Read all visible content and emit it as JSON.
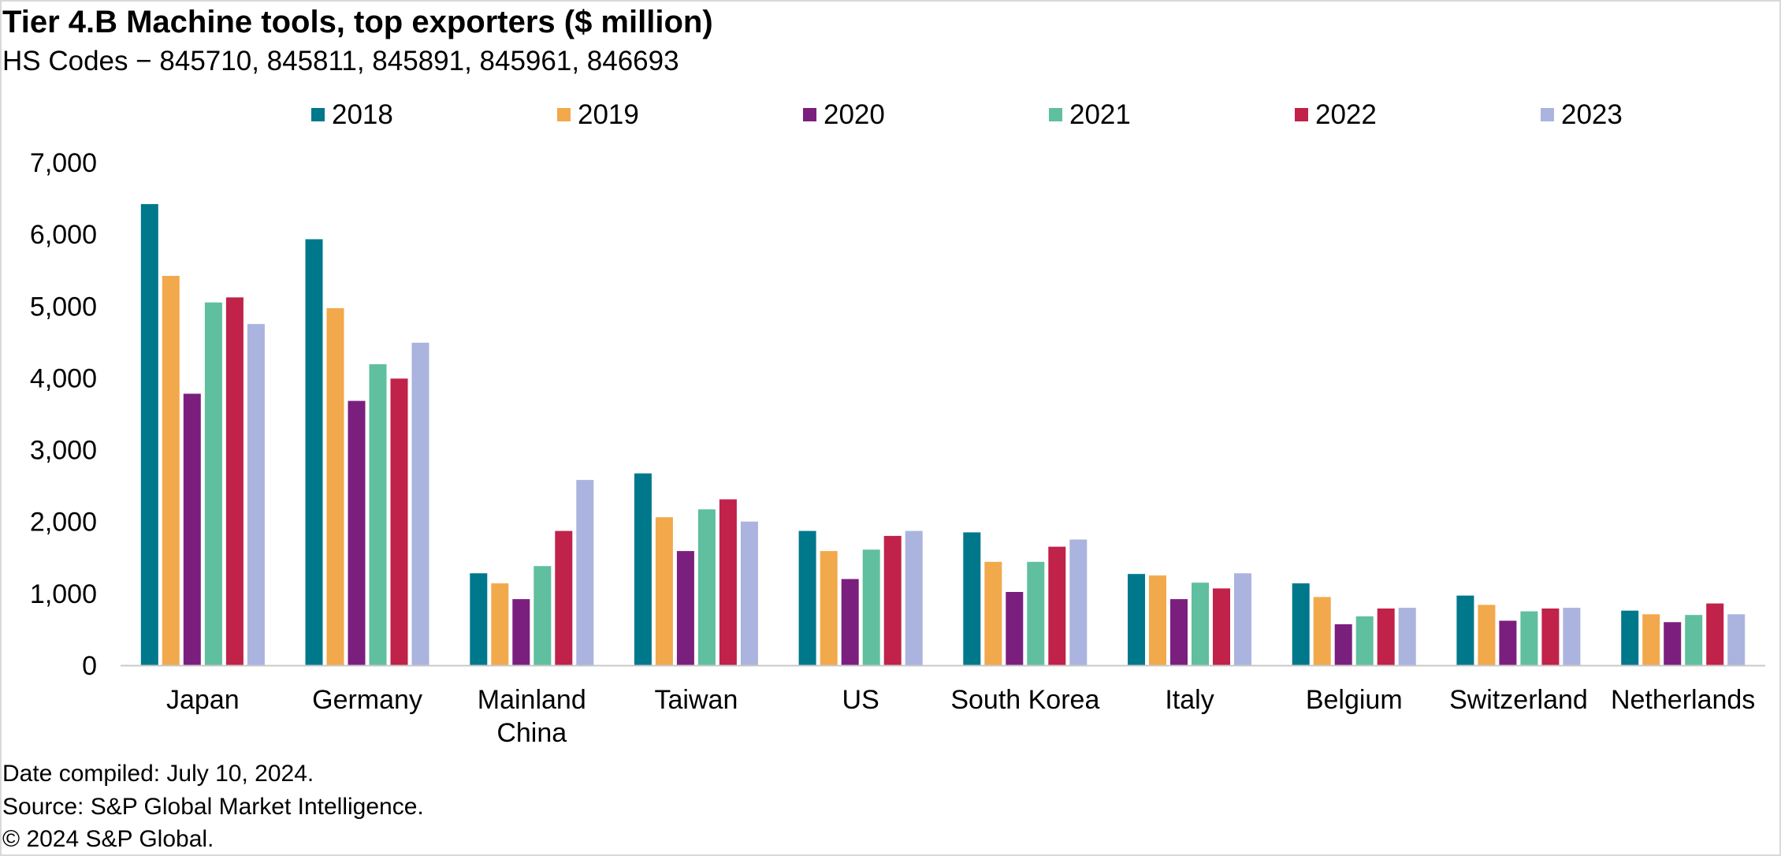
{
  "header": {
    "title": "Tier 4.B Machine tools, top exporters ($ million)",
    "subtitle": "HS Codes − 845710, 845811, 845891, 845961, 846693"
  },
  "footer": {
    "date": "Date compiled: July 10, 2024.",
    "source": "Source: S&P Global Market Intelligence.",
    "copyright": "© 2024 S&P Global."
  },
  "chart_data": {
    "type": "bar",
    "title": "Tier 4.B Machine tools, top exporters ($ million)",
    "xlabel": "",
    "ylabel": "",
    "ylim": [
      0,
      7000
    ],
    "yticks": [
      0,
      1000,
      2000,
      3000,
      4000,
      5000,
      6000,
      7000
    ],
    "ytick_labels": [
      "0",
      "1,000",
      "2,000",
      "3,000",
      "4,000",
      "5,000",
      "6,000",
      "7,000"
    ],
    "grid": false,
    "legend_position": "top",
    "categories": [
      "Japan",
      "Germany",
      "Mainland China",
      "Taiwan",
      "US",
      "South Korea",
      "Italy",
      "Belgium",
      "Switzerland",
      "Netherlands"
    ],
    "category_lines": [
      [
        "Japan"
      ],
      [
        "Germany"
      ],
      [
        "Mainland",
        "China"
      ],
      [
        "Taiwan"
      ],
      [
        "US"
      ],
      [
        "South Korea"
      ],
      [
        "Italy"
      ],
      [
        "Belgium"
      ],
      [
        "Switzerland"
      ],
      [
        "Netherlands"
      ]
    ],
    "series": [
      {
        "name": "2018",
        "color": "#00788c",
        "values": [
          6420,
          5930,
          1280,
          2670,
          1870,
          1850,
          1270,
          1140,
          970,
          760
        ]
      },
      {
        "name": "2019",
        "color": "#f2a94b",
        "values": [
          5420,
          4970,
          1140,
          2060,
          1590,
          1440,
          1250,
          950,
          840,
          710
        ]
      },
      {
        "name": "2020",
        "color": "#7b1f7f",
        "values": [
          3780,
          3680,
          920,
          1590,
          1200,
          1020,
          920,
          570,
          620,
          600
        ]
      },
      {
        "name": "2021",
        "color": "#5fbf9f",
        "values": [
          5050,
          4190,
          1380,
          2170,
          1610,
          1440,
          1150,
          680,
          750,
          700
        ]
      },
      {
        "name": "2022",
        "color": "#c0224a",
        "values": [
          5120,
          3990,
          1870,
          2310,
          1800,
          1650,
          1070,
          790,
          790,
          860
        ]
      },
      {
        "name": "2023",
        "color": "#aab4de",
        "values": [
          4750,
          4490,
          2580,
          2000,
          1870,
          1750,
          1280,
          800,
          800,
          710
        ]
      }
    ]
  }
}
